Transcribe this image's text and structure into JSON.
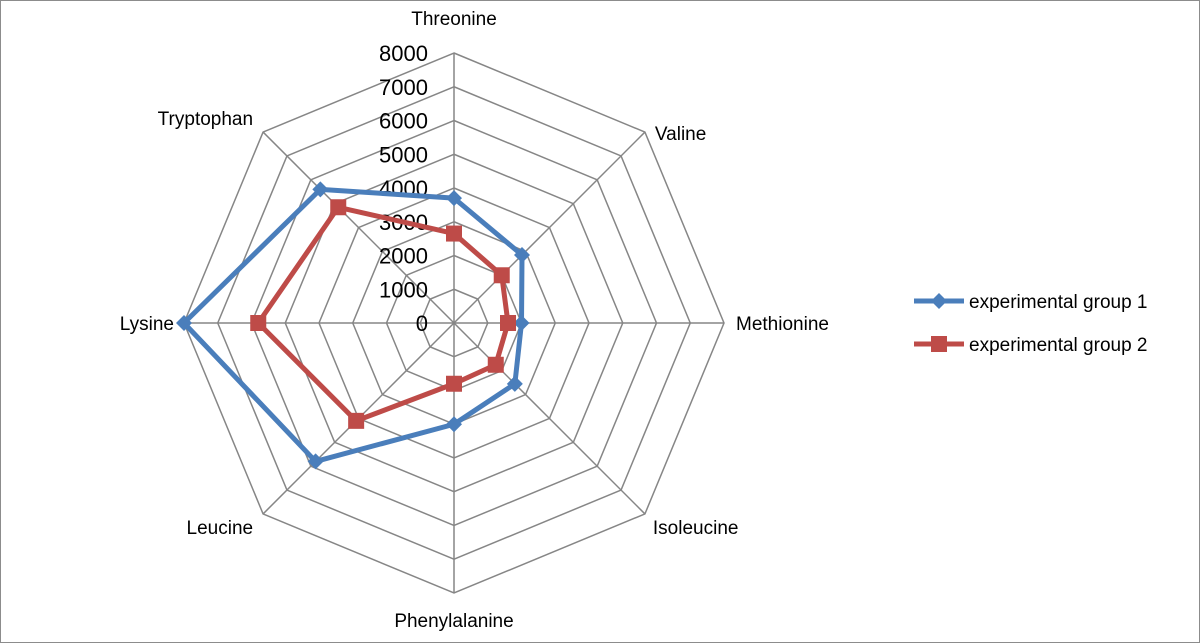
{
  "chart_data": {
    "type": "radar",
    "categories": [
      "Threonine",
      "Valine",
      "Methionine",
      "Isoleucine",
      "Phenylalanine",
      "Leucine",
      "Lysine",
      "Tryptophan"
    ],
    "ticks": [
      "0",
      "1000",
      "2000",
      "3000",
      "4000",
      "5000",
      "6000",
      "7000",
      "8000"
    ],
    "rlim": [
      0,
      8000
    ],
    "grid": true,
    "legend_position": "right",
    "series": [
      {
        "name": "experimental group 1",
        "color": "#4a7ebb",
        "marker": "diamond",
        "values": [
          3700,
          2850,
          2000,
          2550,
          3000,
          5800,
          8000,
          5600
        ]
      },
      {
        "name": "experimental group 2",
        "color": "#be4b48",
        "marker": "square",
        "values": [
          2650,
          2000,
          1600,
          1750,
          1800,
          4100,
          5800,
          4850
        ]
      }
    ]
  }
}
